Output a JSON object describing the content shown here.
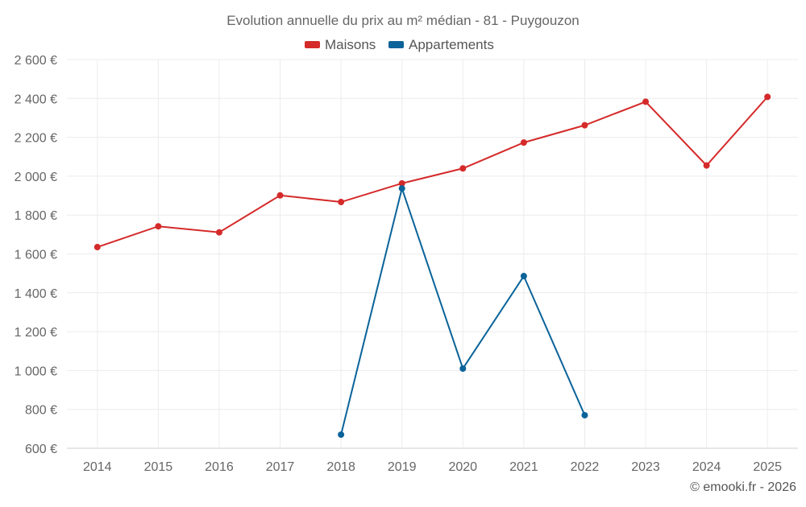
{
  "chart_data": {
    "type": "line",
    "title": "Evolution annuelle du prix au m² médian - 81 - Puygouzon",
    "categories": [
      "2014",
      "2015",
      "2016",
      "2017",
      "2018",
      "2019",
      "2020",
      "2021",
      "2022",
      "2023",
      "2024",
      "2025"
    ],
    "series": [
      {
        "name": "Maisons",
        "color": "#d52a2a",
        "values": [
          1635,
          1742,
          1711,
          1901,
          1867,
          1963,
          2040,
          2173,
          2262,
          2383,
          2055,
          2408
        ]
      },
      {
        "name": "Appartements",
        "color": "#0a6399",
        "values": [
          null,
          null,
          null,
          null,
          670,
          1937,
          1010,
          1486,
          770,
          null,
          null,
          null
        ]
      }
    ],
    "ylim": [
      600,
      2600
    ],
    "yticks": [
      600,
      800,
      1000,
      1200,
      1400,
      1600,
      1800,
      2000,
      2200,
      2400,
      2600
    ],
    "ytick_labels": [
      "600 €",
      "800 €",
      "1 000 €",
      "1 200 €",
      "1 400 €",
      "1 600 €",
      "1 800 €",
      "2 000 €",
      "2 200 €",
      "2 400 €",
      "2 600 €"
    ],
    "xlabel": "",
    "ylabel": "",
    "grid": true,
    "legend_position": "top-center"
  },
  "credit": "© emooki.fr - 2026"
}
